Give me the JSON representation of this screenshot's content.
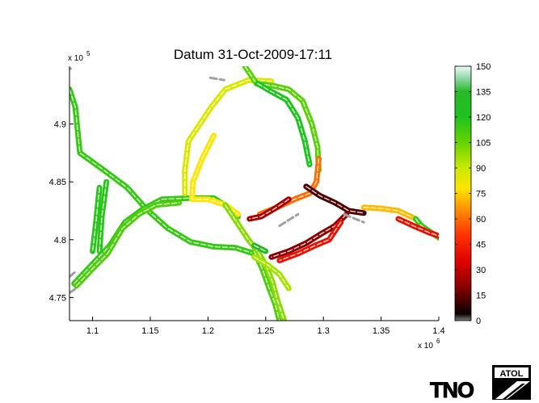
{
  "chart_data": {
    "type": "heatmap",
    "title": "Datum 31-Oct-2009-17:11",
    "x_exponent": "x 10",
    "x_exponent_power": "6",
    "y_exponent": "x 10",
    "y_exponent_power": "5",
    "xlim": [
      1.08,
      1.4
    ],
    "ylim": [
      4.73,
      4.95
    ],
    "x_ticks": [
      1.1,
      1.15,
      1.2,
      1.25,
      1.3,
      1.35,
      1.4
    ],
    "y_ticks": [
      4.75,
      4.8,
      4.85,
      4.9
    ],
    "colorbar": {
      "min": 0,
      "max": 150,
      "ticks": [
        0,
        15,
        30,
        45,
        60,
        75,
        90,
        105,
        120,
        135,
        150
      ],
      "colormap": [
        [
          0,
          "#808080"
        ],
        [
          4,
          "#0a0000"
        ],
        [
          20,
          "#8a0000"
        ],
        [
          35,
          "#e00000"
        ],
        [
          50,
          "#ff3000"
        ],
        [
          65,
          "#ff8c00"
        ],
        [
          78,
          "#ffe400"
        ],
        [
          90,
          "#c8ea00"
        ],
        [
          105,
          "#66d400"
        ],
        [
          120,
          "#1ec31e"
        ],
        [
          135,
          "#28b828"
        ],
        [
          143,
          "#90d8a8"
        ],
        [
          150,
          "#eefaf6"
        ]
      ]
    },
    "roads": [
      {
        "speed": 115,
        "points": [
          [
            1.08,
            4.93
          ],
          [
            1.085,
            4.915
          ],
          [
            1.087,
            4.895
          ],
          [
            1.089,
            4.875
          ],
          [
            1.11,
            4.86
          ],
          [
            1.13,
            4.845
          ],
          [
            1.147,
            4.826
          ],
          [
            1.165,
            4.81
          ],
          [
            1.185,
            4.798
          ],
          [
            1.205,
            4.794
          ],
          [
            1.224,
            4.793
          ],
          [
            1.24,
            4.788
          ]
        ]
      },
      {
        "speed": 115,
        "points": [
          [
            1.084,
            4.762
          ],
          [
            1.1,
            4.779
          ],
          [
            1.115,
            4.795
          ],
          [
            1.128,
            4.815
          ],
          [
            1.143,
            4.826
          ],
          [
            1.16,
            4.835
          ],
          [
            1.185,
            4.836
          ],
          [
            1.205,
            4.836
          ],
          [
            1.216,
            4.829
          ],
          [
            1.226,
            4.82
          ]
        ]
      },
      {
        "speed": 110,
        "points": [
          [
            1.086,
            4.76
          ],
          [
            1.1,
            4.775
          ],
          [
            1.113,
            4.788
          ],
          [
            1.126,
            4.81
          ],
          [
            1.14,
            4.822
          ],
          [
            1.155,
            4.83
          ],
          [
            1.175,
            4.832
          ]
        ]
      },
      {
        "speed": 118,
        "points": [
          [
            1.112,
            4.85
          ],
          [
            1.108,
            4.82
          ],
          [
            1.106,
            4.79
          ]
        ]
      },
      {
        "speed": 118,
        "points": [
          [
            1.106,
            4.845
          ],
          [
            1.103,
            4.815
          ],
          [
            1.1,
            4.79
          ]
        ]
      },
      {
        "speed": 78,
        "points": [
          [
            1.205,
            4.89
          ],
          [
            1.195,
            4.87
          ],
          [
            1.187,
            4.85
          ],
          [
            1.186,
            4.835
          ],
          [
            1.2,
            4.835
          ],
          [
            1.215,
            4.83
          ],
          [
            1.226,
            4.822
          ]
        ]
      },
      {
        "speed": 86,
        "points": [
          [
            1.18,
            4.84
          ],
          [
            1.18,
            4.86
          ],
          [
            1.183,
            4.885
          ],
          [
            1.193,
            4.9
          ],
          [
            1.203,
            4.915
          ],
          [
            1.215,
            4.93
          ],
          [
            1.235,
            4.938
          ],
          [
            1.255,
            4.937
          ]
        ]
      },
      {
        "speed": 108,
        "points": [
          [
            1.232,
            4.95
          ],
          [
            1.242,
            4.935
          ],
          [
            1.257,
            4.933
          ],
          [
            1.27,
            4.93
          ],
          [
            1.282,
            4.92
          ],
          [
            1.29,
            4.9
          ],
          [
            1.295,
            4.88
          ],
          [
            1.296,
            4.86
          ]
        ]
      },
      {
        "speed": 120,
        "points": [
          [
            1.243,
            4.935
          ],
          [
            1.255,
            4.928
          ],
          [
            1.268,
            4.921
          ],
          [
            1.278,
            4.905
          ],
          [
            1.284,
            4.885
          ],
          [
            1.288,
            4.865
          ]
        ]
      },
      {
        "speed": 60,
        "points": [
          [
            1.296,
            4.87
          ],
          [
            1.294,
            4.85
          ],
          [
            1.288,
            4.84
          ],
          [
            1.275,
            4.835
          ],
          [
            1.26,
            4.828
          ],
          [
            1.245,
            4.822
          ]
        ]
      },
      {
        "speed": 25,
        "points": [
          [
            1.27,
            4.835
          ],
          [
            1.258,
            4.827
          ],
          [
            1.246,
            4.82
          ],
          [
            1.236,
            4.818
          ]
        ]
      },
      {
        "speed": 12,
        "points": [
          [
            1.285,
            4.846
          ],
          [
            1.297,
            4.838
          ],
          [
            1.31,
            4.832
          ],
          [
            1.322,
            4.825
          ],
          [
            1.335,
            4.823
          ]
        ]
      },
      {
        "speed": 72,
        "points": [
          [
            1.335,
            4.828
          ],
          [
            1.35,
            4.827
          ],
          [
            1.365,
            4.825
          ],
          [
            1.38,
            4.818
          ]
        ]
      },
      {
        "speed": 115,
        "points": [
          [
            1.38,
            4.818
          ],
          [
            1.385,
            4.812
          ],
          [
            1.395,
            4.805
          ],
          [
            1.403,
            4.8
          ],
          [
            1.415,
            4.79
          ],
          [
            1.42,
            4.78
          ]
        ]
      },
      {
        "speed": 40,
        "points": [
          [
            1.365,
            4.818
          ],
          [
            1.378,
            4.812
          ],
          [
            1.392,
            4.806
          ],
          [
            1.41,
            4.8
          ]
        ]
      },
      {
        "speed": 20,
        "points": [
          [
            1.32,
            4.822
          ],
          [
            1.31,
            4.812
          ],
          [
            1.298,
            4.805
          ],
          [
            1.285,
            4.797
          ],
          [
            1.27,
            4.79
          ],
          [
            1.255,
            4.785
          ]
        ]
      },
      {
        "speed": 40,
        "points": [
          [
            1.315,
            4.815
          ],
          [
            1.305,
            4.8
          ],
          [
            1.293,
            4.795
          ],
          [
            1.278,
            4.788
          ],
          [
            1.262,
            4.782
          ]
        ]
      },
      {
        "speed": 110,
        "points": [
          [
            1.24,
            4.79
          ],
          [
            1.247,
            4.775
          ],
          [
            1.253,
            4.758
          ],
          [
            1.258,
            4.745
          ],
          [
            1.262,
            4.73
          ]
        ]
      },
      {
        "speed": 100,
        "points": [
          [
            1.215,
            4.83
          ],
          [
            1.225,
            4.815
          ],
          [
            1.235,
            4.8
          ],
          [
            1.243,
            4.79
          ],
          [
            1.25,
            4.778
          ],
          [
            1.256,
            4.763
          ],
          [
            1.26,
            4.748
          ],
          [
            1.266,
            4.73
          ]
        ]
      },
      {
        "speed": 95,
        "points": [
          [
            1.24,
            4.785
          ],
          [
            1.252,
            4.778
          ],
          [
            1.262,
            4.77
          ],
          [
            1.27,
            4.758
          ]
        ]
      },
      {
        "speed": 135,
        "points": [
          [
            1.24,
            4.795
          ],
          [
            1.25,
            4.79
          ]
        ]
      }
    ],
    "gray_segments": [
      {
        "points": [
          [
            1.08,
            4.768
          ],
          [
            1.086,
            4.773
          ]
        ]
      },
      {
        "points": [
          [
            1.08,
            4.754
          ],
          [
            1.086,
            4.758
          ]
        ]
      },
      {
        "points": [
          [
            1.075,
            4.942
          ],
          [
            1.081,
            4.948
          ]
        ]
      },
      {
        "points": [
          [
            1.262,
            4.812
          ],
          [
            1.278,
            4.822
          ]
        ]
      },
      {
        "points": [
          [
            1.318,
            4.822
          ],
          [
            1.335,
            4.815
          ]
        ]
      },
      {
        "points": [
          [
            1.202,
            4.94
          ],
          [
            1.214,
            4.938
          ]
        ]
      }
    ]
  },
  "logos": {
    "tno": "TNO",
    "atol": "ATOL"
  }
}
